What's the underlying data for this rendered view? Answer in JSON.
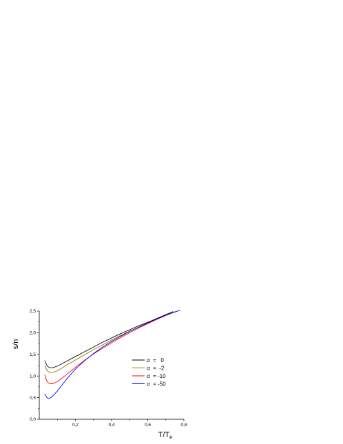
{
  "chart_data": {
    "type": "line",
    "title": "",
    "xlabel_main": "T/T",
    "xlabel_sub": "F",
    "ylabel": "s/n",
    "xlim": [
      0.0,
      0.8
    ],
    "ylim": [
      0.0,
      2.5
    ],
    "xticks": [
      0.2,
      0.4,
      0.6,
      0.8
    ],
    "xtick_labels": [
      "0,2",
      "0,4",
      "0,6",
      "0,8"
    ],
    "yticks": [
      0.0,
      0.5,
      1.0,
      1.5,
      2.0,
      2.5
    ],
    "ytick_labels": [
      "0,0",
      "0,5",
      "1,0",
      "1,5",
      "2,0",
      "2,5"
    ],
    "grid": false,
    "legend_position": "right",
    "series": [
      {
        "name": "α  =   0",
        "color": "#000000",
        "x": [
          0.03,
          0.04,
          0.05,
          0.06,
          0.07,
          0.08,
          0.1,
          0.12,
          0.15,
          0.2,
          0.25,
          0.3,
          0.35,
          0.4,
          0.45,
          0.5,
          0.55,
          0.6,
          0.65,
          0.7,
          0.74
        ],
        "y": [
          1.36,
          1.26,
          1.21,
          1.19,
          1.19,
          1.2,
          1.23,
          1.27,
          1.34,
          1.45,
          1.56,
          1.67,
          1.78,
          1.88,
          1.98,
          2.07,
          2.16,
          2.24,
          2.33,
          2.42,
          2.49
        ]
      },
      {
        "name": "α  =  -2",
        "color": "#7f7f00",
        "x": [
          0.03,
          0.04,
          0.05,
          0.06,
          0.07,
          0.08,
          0.1,
          0.12,
          0.15,
          0.2,
          0.25,
          0.3,
          0.35,
          0.4,
          0.45,
          0.5,
          0.55,
          0.6,
          0.65,
          0.7,
          0.75
        ],
        "y": [
          1.24,
          1.15,
          1.1,
          1.08,
          1.08,
          1.09,
          1.12,
          1.17,
          1.25,
          1.37,
          1.49,
          1.61,
          1.72,
          1.83,
          1.94,
          2.04,
          2.13,
          2.22,
          2.31,
          2.4,
          2.49
        ]
      },
      {
        "name": "α  = -10",
        "color": "#ff0000",
        "x": [
          0.03,
          0.04,
          0.05,
          0.06,
          0.07,
          0.08,
          0.1,
          0.12,
          0.15,
          0.2,
          0.25,
          0.3,
          0.35,
          0.4,
          0.45,
          0.5,
          0.55,
          0.6,
          0.65,
          0.7,
          0.75,
          0.77
        ],
        "y": [
          1.03,
          0.9,
          0.84,
          0.82,
          0.82,
          0.83,
          0.87,
          0.93,
          1.03,
          1.2,
          1.36,
          1.51,
          1.64,
          1.77,
          1.89,
          2.0,
          2.11,
          2.21,
          2.31,
          2.4,
          2.48,
          2.51
        ]
      },
      {
        "name": "α  = -50",
        "color": "#0000ff",
        "x": [
          0.03,
          0.04,
          0.05,
          0.06,
          0.07,
          0.08,
          0.1,
          0.12,
          0.15,
          0.2,
          0.25,
          0.3,
          0.35,
          0.4,
          0.45,
          0.5,
          0.55,
          0.6,
          0.65,
          0.7,
          0.75,
          0.78
        ],
        "y": [
          0.59,
          0.51,
          0.48,
          0.49,
          0.52,
          0.56,
          0.65,
          0.76,
          0.92,
          1.16,
          1.35,
          1.52,
          1.67,
          1.8,
          1.92,
          2.03,
          2.13,
          2.23,
          2.32,
          2.41,
          2.48,
          2.52
        ]
      }
    ]
  }
}
